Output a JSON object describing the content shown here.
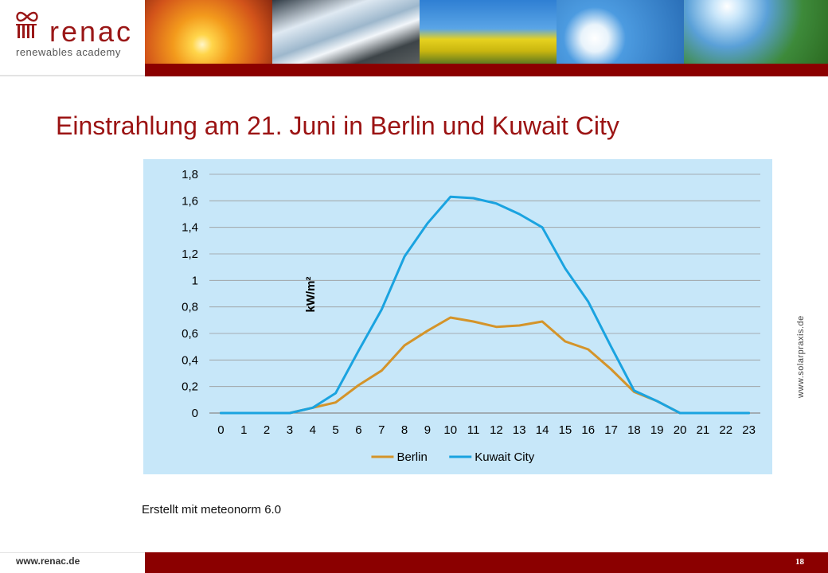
{
  "header": {
    "logo_name": "renac",
    "logo_tagline": "renewables academy"
  },
  "slide": {
    "title": "Einstrahlung am 21. Juni in Berlin und Kuwait City",
    "caption": "Erstellt mit meteonorm 6.0",
    "side_note": "www.solarpraxis.de"
  },
  "footer": {
    "url": "www.renac.de",
    "page_number": "18"
  },
  "colors": {
    "brand_red": "#8b0000",
    "title_red": "#9b1313",
    "chart_bg": "#c7e7f9",
    "berlin": "#d4942a",
    "kuwait": "#1aa3e0"
  },
  "chart_data": {
    "type": "line",
    "title": "",
    "xlabel": "",
    "ylabel": "kW/m²",
    "x": [
      0,
      1,
      2,
      3,
      4,
      5,
      6,
      7,
      8,
      9,
      10,
      11,
      12,
      13,
      14,
      15,
      16,
      17,
      18,
      19,
      20,
      21,
      22,
      23
    ],
    "ylim": [
      0,
      1.8
    ],
    "yticks": [
      "0",
      "0,2",
      "0,4",
      "0,6",
      "0,8",
      "1",
      "1,2",
      "1,4",
      "1,6",
      "1,8"
    ],
    "grid": true,
    "legend": "bottom",
    "series": [
      {
        "name": "Berlin",
        "color": "#d4942a",
        "values": [
          0,
          0,
          0,
          0,
          0.04,
          0.08,
          0.21,
          0.32,
          0.51,
          0.62,
          0.72,
          0.69,
          0.65,
          0.66,
          0.69,
          0.54,
          0.48,
          0.33,
          0.16,
          0.09,
          0,
          0,
          0,
          0
        ]
      },
      {
        "name": "Kuwait City",
        "color": "#1aa3e0",
        "values": [
          0,
          0,
          0,
          0,
          0.04,
          0.15,
          0.47,
          0.78,
          1.18,
          1.43,
          1.63,
          1.62,
          1.58,
          1.5,
          1.4,
          1.09,
          0.84,
          0.5,
          0.17,
          0.09,
          0,
          0,
          0,
          0
        ]
      }
    ]
  }
}
